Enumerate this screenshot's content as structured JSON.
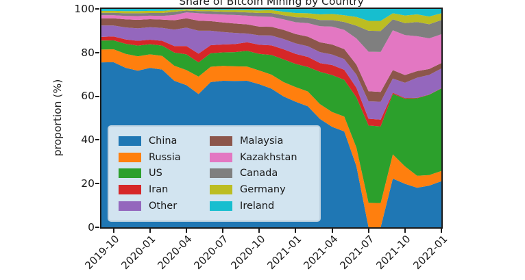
{
  "title": "Share of Bitcoin Mining by Country",
  "axes": {
    "ylabel": "proportion (%)",
    "y_ticks": [
      "0",
      "20",
      "40",
      "60",
      "80",
      "100"
    ],
    "x_ticks": [
      "2019-10",
      "2020-01",
      "2020-04",
      "2020-07",
      "2020-10",
      "2021-01",
      "2021-04",
      "2021-07",
      "2021-10",
      "2022-01"
    ]
  },
  "chart_data": {
    "type": "area",
    "stacked": true,
    "title": "Share of Bitcoin Mining by Country",
    "xlabel": "",
    "ylabel": "proportion (%)",
    "ylim": [
      0,
      100
    ],
    "grid": false,
    "legend_position": "lower left",
    "x": [
      "2019-09",
      "2019-10",
      "2019-11",
      "2019-12",
      "2020-01",
      "2020-02",
      "2020-03",
      "2020-04",
      "2020-05",
      "2020-06",
      "2020-07",
      "2020-08",
      "2020-09",
      "2020-10",
      "2020-11",
      "2020-12",
      "2021-01",
      "2021-02",
      "2021-03",
      "2021-04",
      "2021-05",
      "2021-06",
      "2021-07",
      "2021-08",
      "2021-09",
      "2021-10",
      "2021-11",
      "2021-12",
      "2022-01"
    ],
    "series": [
      {
        "name": "China",
        "color": "#1f77b4",
        "values": [
          75.5,
          75.6,
          73.0,
          71.7,
          73.0,
          72.2,
          67.1,
          65.1,
          61.0,
          66.5,
          67.1,
          67.0,
          67.1,
          65.5,
          63.5,
          59.9,
          57.5,
          55.4,
          49.6,
          46.0,
          43.9,
          28.0,
          0.0,
          0.0,
          22.3,
          19.9,
          18.1,
          19.1,
          21.1
        ]
      },
      {
        "name": "Russia",
        "color": "#ff7f0e",
        "values": [
          5.9,
          5.9,
          6.4,
          6.6,
          6.2,
          6.3,
          6.9,
          6.9,
          8.0,
          7.0,
          6.8,
          6.7,
          6.5,
          6.3,
          6.4,
          6.6,
          6.7,
          6.8,
          6.8,
          6.8,
          6.8,
          8.5,
          11.2,
          11.1,
          11.1,
          8.0,
          5.5,
          4.8,
          4.7
        ]
      },
      {
        "name": "US",
        "color": "#2ca02c",
        "values": [
          4.1,
          4.1,
          4.6,
          4.9,
          4.6,
          4.7,
          6.0,
          7.2,
          6.5,
          6.2,
          6.2,
          6.5,
          7.2,
          7.6,
          9.0,
          10.4,
          10.6,
          11.2,
          14.8,
          16.9,
          16.8,
          23.0,
          35.4,
          35.1,
          27.7,
          31.0,
          35.5,
          36.8,
          37.8
        ]
      },
      {
        "name": "Iran",
        "color": "#d62728",
        "values": [
          1.7,
          1.8,
          2.0,
          2.2,
          2.1,
          2.2,
          3.0,
          3.8,
          4.0,
          3.7,
          3.6,
          3.7,
          3.9,
          4.2,
          4.4,
          4.6,
          4.6,
          4.6,
          4.0,
          4.6,
          4.6,
          4.4,
          3.1,
          3.1,
          0.5,
          0.3,
          0.2,
          0.1,
          0.1
        ]
      },
      {
        "name": "Other",
        "color": "#9467bd",
        "values": [
          5.2,
          5.0,
          5.5,
          5.7,
          5.7,
          5.9,
          7.5,
          8.4,
          10.5,
          6.6,
          5.7,
          5.1,
          4.0,
          4.3,
          4.5,
          4.7,
          4.8,
          4.9,
          5.0,
          4.8,
          4.9,
          6.0,
          8.0,
          8.2,
          6.5,
          7.0,
          9.2,
          9.0,
          9.0
        ]
      },
      {
        "name": "Malaysia",
        "color": "#8c564b",
        "values": [
          3.3,
          3.3,
          3.7,
          3.9,
          3.7,
          3.8,
          4.3,
          4.3,
          4.6,
          4.4,
          4.4,
          4.3,
          4.2,
          4.0,
          4.0,
          4.2,
          4.3,
          4.4,
          4.5,
          4.6,
          4.6,
          4.6,
          4.6,
          4.5,
          3.9,
          3.5,
          3.0,
          2.7,
          2.5
        ]
      },
      {
        "name": "Kazakhstan",
        "color": "#e377c2",
        "values": [
          1.4,
          1.4,
          1.6,
          1.7,
          1.6,
          1.7,
          2.4,
          2.7,
          3.4,
          3.3,
          3.6,
          3.9,
          4.0,
          4.6,
          4.6,
          4.8,
          5.4,
          6.2,
          7.4,
          8.2,
          8.8,
          12.0,
          18.1,
          18.3,
          18.2,
          18.3,
          16.0,
          14.0,
          13.2
        ]
      },
      {
        "name": "Canada",
        "color": "#7f7f7f",
        "values": [
          1.1,
          1.1,
          1.2,
          1.3,
          1.2,
          1.3,
          1.5,
          0.8,
          1.0,
          1.2,
          1.3,
          1.4,
          1.5,
          1.6,
          1.7,
          1.9,
          2.3,
          2.5,
          2.8,
          3.0,
          3.6,
          5.8,
          9.6,
          9.6,
          5.0,
          5.5,
          6.5,
          6.5,
          6.5
        ]
      },
      {
        "name": "Germany",
        "color": "#bcbd22",
        "values": [
          0.9,
          0.9,
          1.0,
          1.0,
          1.0,
          1.0,
          0.8,
          0.6,
          0.7,
          0.7,
          0.8,
          0.9,
          1.0,
          1.2,
          1.3,
          1.6,
          1.9,
          2.0,
          2.6,
          2.8,
          3.1,
          4.0,
          4.5,
          4.6,
          2.8,
          3.5,
          3.5,
          3.5,
          3.1
        ]
      },
      {
        "name": "Ireland",
        "color": "#17becf",
        "values": [
          0.9,
          0.9,
          1.0,
          1.0,
          0.9,
          0.9,
          0.5,
          0.2,
          0.3,
          0.4,
          0.5,
          0.5,
          0.6,
          0.7,
          0.6,
          1.3,
          1.9,
          2.0,
          2.5,
          2.3,
          2.9,
          3.7,
          5.5,
          5.5,
          2.0,
          3.0,
          2.5,
          3.5,
          2.0
        ]
      }
    ]
  }
}
